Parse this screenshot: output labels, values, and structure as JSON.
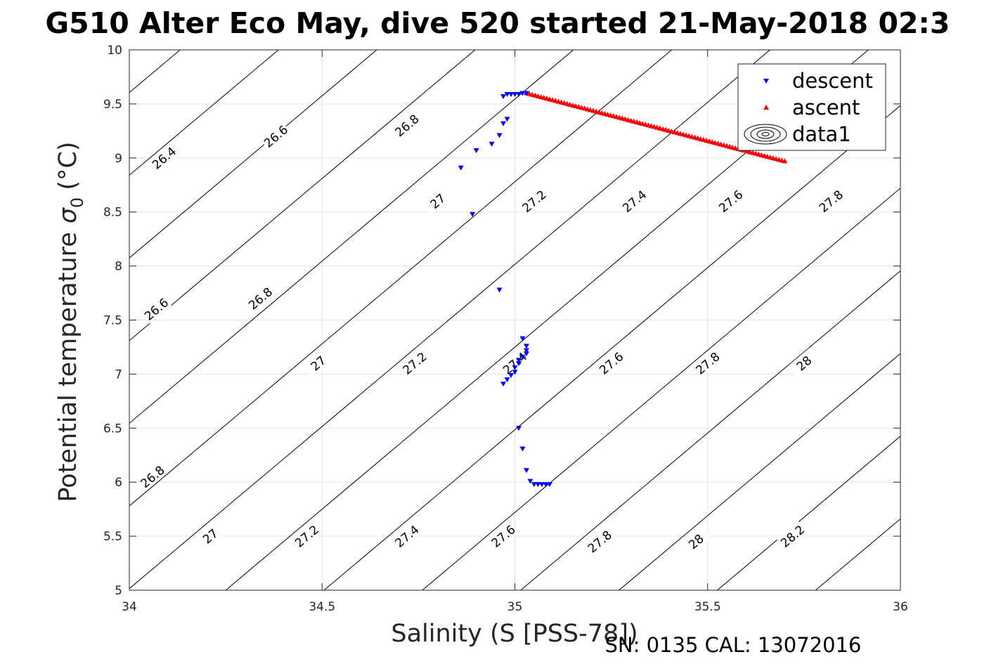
{
  "chart_data": {
    "type": "scatter",
    "title": "G510 Alter Eco May, dive 520 started 21-May-2018 02:3",
    "xlabel": "Salinity (S [PSS-78])",
    "ylabel": "Potential temperature",
    "ylabel_symbol": "σ",
    "ylabel_subscript": "0",
    "ylabel_unit": "(°C)",
    "footer": "SN: 0135  CAL: 13072016",
    "xlim": [
      34,
      36
    ],
    "ylim": [
      5,
      10
    ],
    "xticks": [
      34,
      34.5,
      35,
      35.5,
      36
    ],
    "xtick_labels": [
      "34",
      "34.5",
      "35",
      "35.5",
      "36"
    ],
    "yticks": [
      5,
      5.5,
      6,
      6.5,
      7,
      7.5,
      8,
      8.5,
      9,
      9.5,
      10
    ],
    "ytick_labels": [
      "5",
      "5.5",
      "6",
      "6.5",
      "7",
      "7.5",
      "8",
      "8.5",
      "9",
      "9.5",
      "10"
    ],
    "grid": true,
    "legend": {
      "position": "top-right",
      "entries": [
        {
          "label": "descent",
          "marker": "triangle-down",
          "color": "#0000ff"
        },
        {
          "label": "ascent",
          "marker": "triangle-up",
          "color": "#ff0000"
        },
        {
          "label": "data1",
          "marker": "contour",
          "color": "#000000"
        }
      ]
    },
    "contours": {
      "levels": [
        "26.4",
        "26.6",
        "26.8",
        "27",
        "27.2",
        "27.4",
        "27.6",
        "27.8",
        "28",
        "28.2"
      ],
      "labels": [
        {
          "text": "26.4",
          "s": 34.09,
          "t": 9.0
        },
        {
          "text": "26.6",
          "s": 34.38,
          "t": 9.2
        },
        {
          "text": "26.8",
          "s": 34.72,
          "t": 9.3
        },
        {
          "text": "27",
          "s": 34.8,
          "t": 8.6
        },
        {
          "text": "27.2",
          "s": 35.05,
          "t": 8.6
        },
        {
          "text": "27.4",
          "s": 35.31,
          "t": 8.6
        },
        {
          "text": "27.6",
          "s": 35.56,
          "t": 8.6
        },
        {
          "text": "27.8",
          "s": 35.82,
          "t": 8.6
        },
        {
          "text": "26.6",
          "s": 34.07,
          "t": 7.6
        },
        {
          "text": "26.8",
          "s": 34.34,
          "t": 7.7
        },
        {
          "text": "27",
          "s": 34.49,
          "t": 7.1
        },
        {
          "text": "27.2",
          "s": 34.74,
          "t": 7.1
        },
        {
          "text": "27.4",
          "s": 35.0,
          "t": 7.1
        },
        {
          "text": "27.6",
          "s": 35.25,
          "t": 7.1
        },
        {
          "text": "27.8",
          "s": 35.5,
          "t": 7.1
        },
        {
          "text": "28",
          "s": 35.75,
          "t": 7.1
        },
        {
          "text": "26.8",
          "s": 34.06,
          "t": 6.05
        },
        {
          "text": "27",
          "s": 34.21,
          "t": 5.5
        },
        {
          "text": "27.2",
          "s": 34.46,
          "t": 5.5
        },
        {
          "text": "27.4",
          "s": 34.72,
          "t": 5.5
        },
        {
          "text": "27.6",
          "s": 34.97,
          "t": 5.5
        },
        {
          "text": "27.8",
          "s": 35.22,
          "t": 5.45
        },
        {
          "text": "28",
          "s": 35.47,
          "t": 5.45
        },
        {
          "text": "28.2",
          "s": 35.72,
          "t": 5.5
        }
      ]
    },
    "series": [
      {
        "name": "descent",
        "marker": "triangle-down",
        "color": "#0000ff",
        "x": [
          34.86,
          34.89,
          34.9,
          34.94,
          34.96,
          34.97,
          34.98,
          34.97,
          34.98,
          34.99,
          35.0,
          35.01,
          35.02,
          35.03,
          34.96,
          35.03,
          35.03,
          35.03,
          35.02,
          35.02,
          35.01,
          35.01,
          35.0,
          35.0,
          34.99,
          34.98,
          34.97,
          35.01,
          35.02,
          35.03,
          35.04,
          35.05,
          35.06,
          35.07,
          35.08,
          35.09
        ],
        "y": [
          8.91,
          8.48,
          9.07,
          9.13,
          9.21,
          9.32,
          9.36,
          9.57,
          9.59,
          9.59,
          9.59,
          9.59,
          9.6,
          9.6,
          7.78,
          7.26,
          7.22,
          7.19,
          7.33,
          7.16,
          7.13,
          7.1,
          7.06,
          7.02,
          6.99,
          6.95,
          6.91,
          6.5,
          6.31,
          6.11,
          6.01,
          5.98,
          5.98,
          5.98,
          5.98,
          5.98
        ]
      },
      {
        "name": "ascent",
        "marker": "triangle-up",
        "color": "#ff0000",
        "x_range": [
          35.03,
          35.7
        ],
        "y_range": [
          9.6,
          8.97
        ]
      }
    ]
  }
}
